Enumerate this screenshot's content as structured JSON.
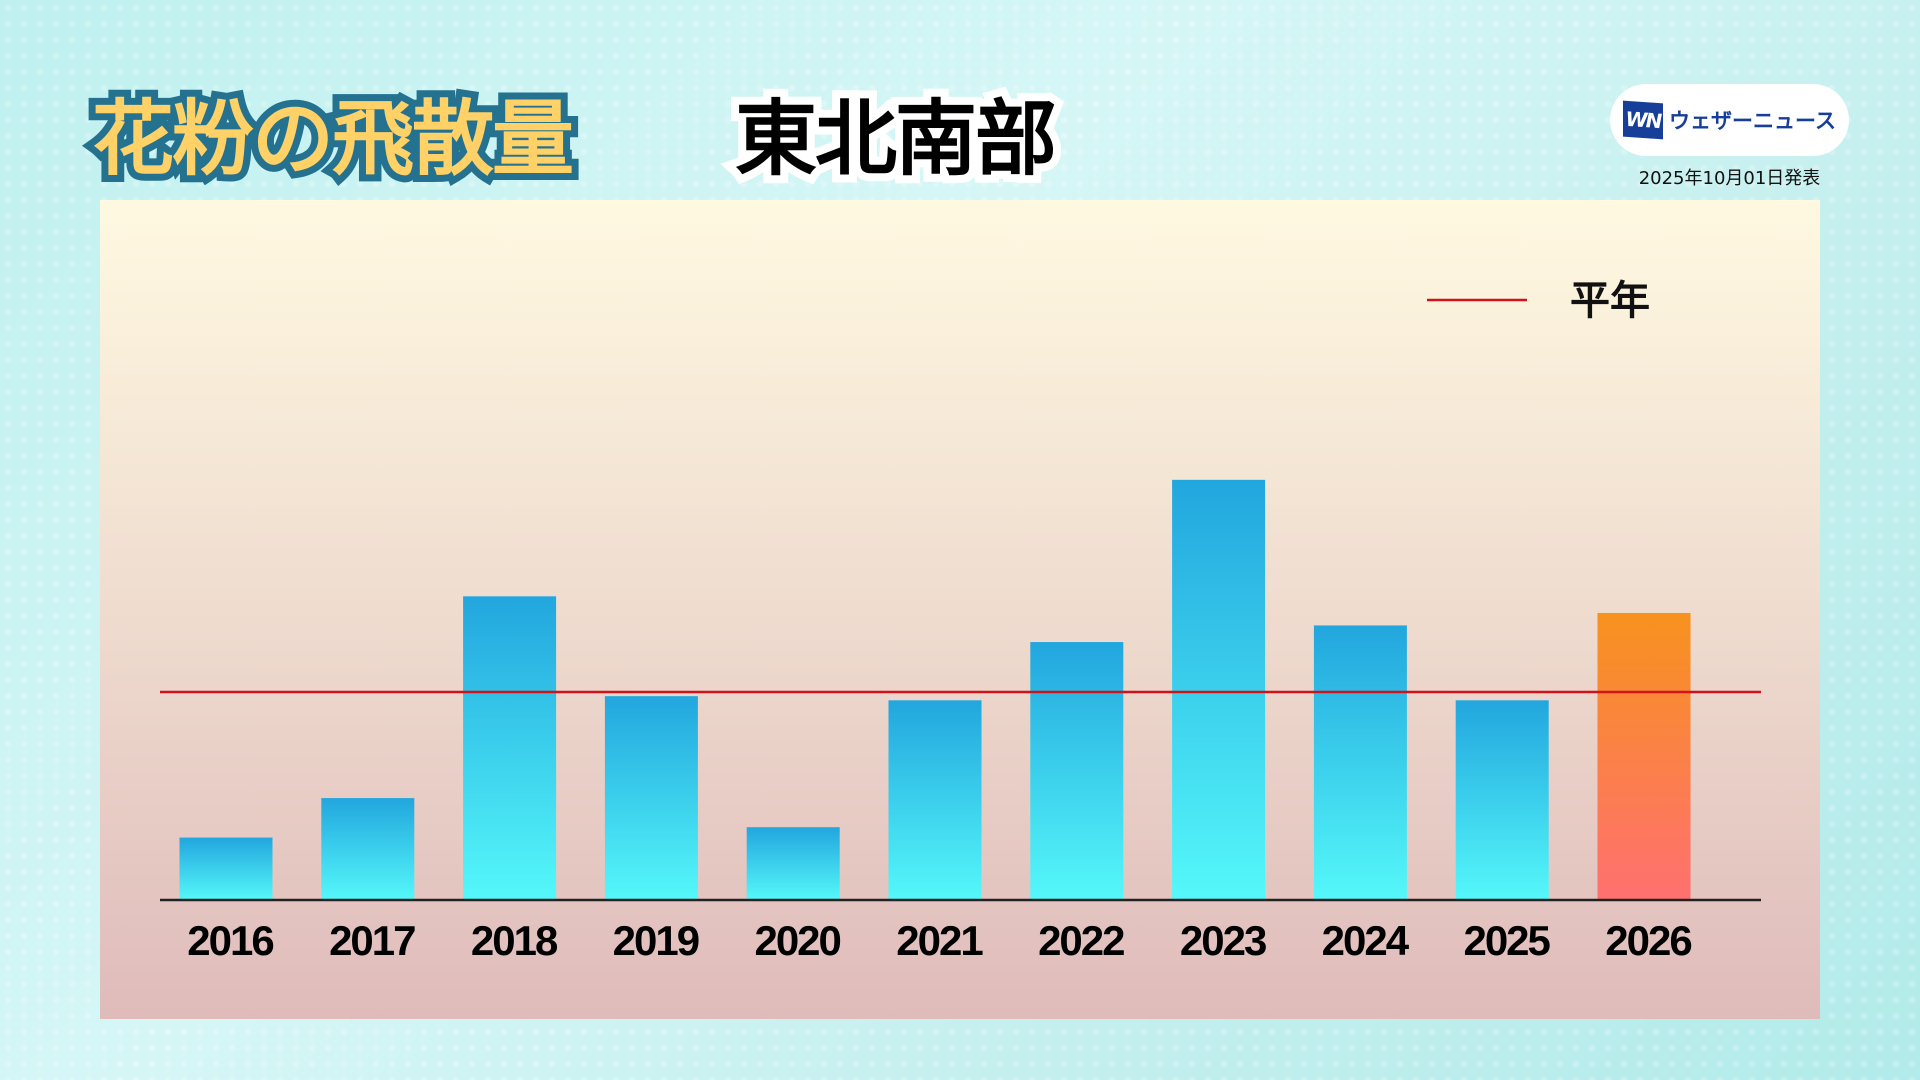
{
  "header": {
    "title": "花粉の飛散量",
    "region": "東北南部"
  },
  "logo": {
    "mark": "WN",
    "name": "ウェザーニュース"
  },
  "issued": "2025年10月01日発表",
  "colors": {
    "bar_top": "#22a6de",
    "bar_bottom": "#55f8fa",
    "forecast_top": "#f7921e",
    "forecast_bottom": "#ff7070",
    "average_line": "#d0121b"
  },
  "chart_data": {
    "type": "bar",
    "categories": [
      "2016",
      "2017",
      "2018",
      "2019",
      "2020",
      "2021",
      "2022",
      "2023",
      "2024",
      "2025",
      "2026"
    ],
    "values": [
      30,
      49,
      146,
      98,
      35,
      96,
      124,
      202,
      132,
      96,
      138
    ],
    "value_unit": "% of 平年",
    "highlight": "2026",
    "reference_line": {
      "name": "平年",
      "value": 100
    },
    "legend": {
      "label": "平年",
      "placement": "top-right"
    },
    "ylim": [
      0,
      230
    ],
    "grid": false,
    "y_axis_shown": false
  }
}
